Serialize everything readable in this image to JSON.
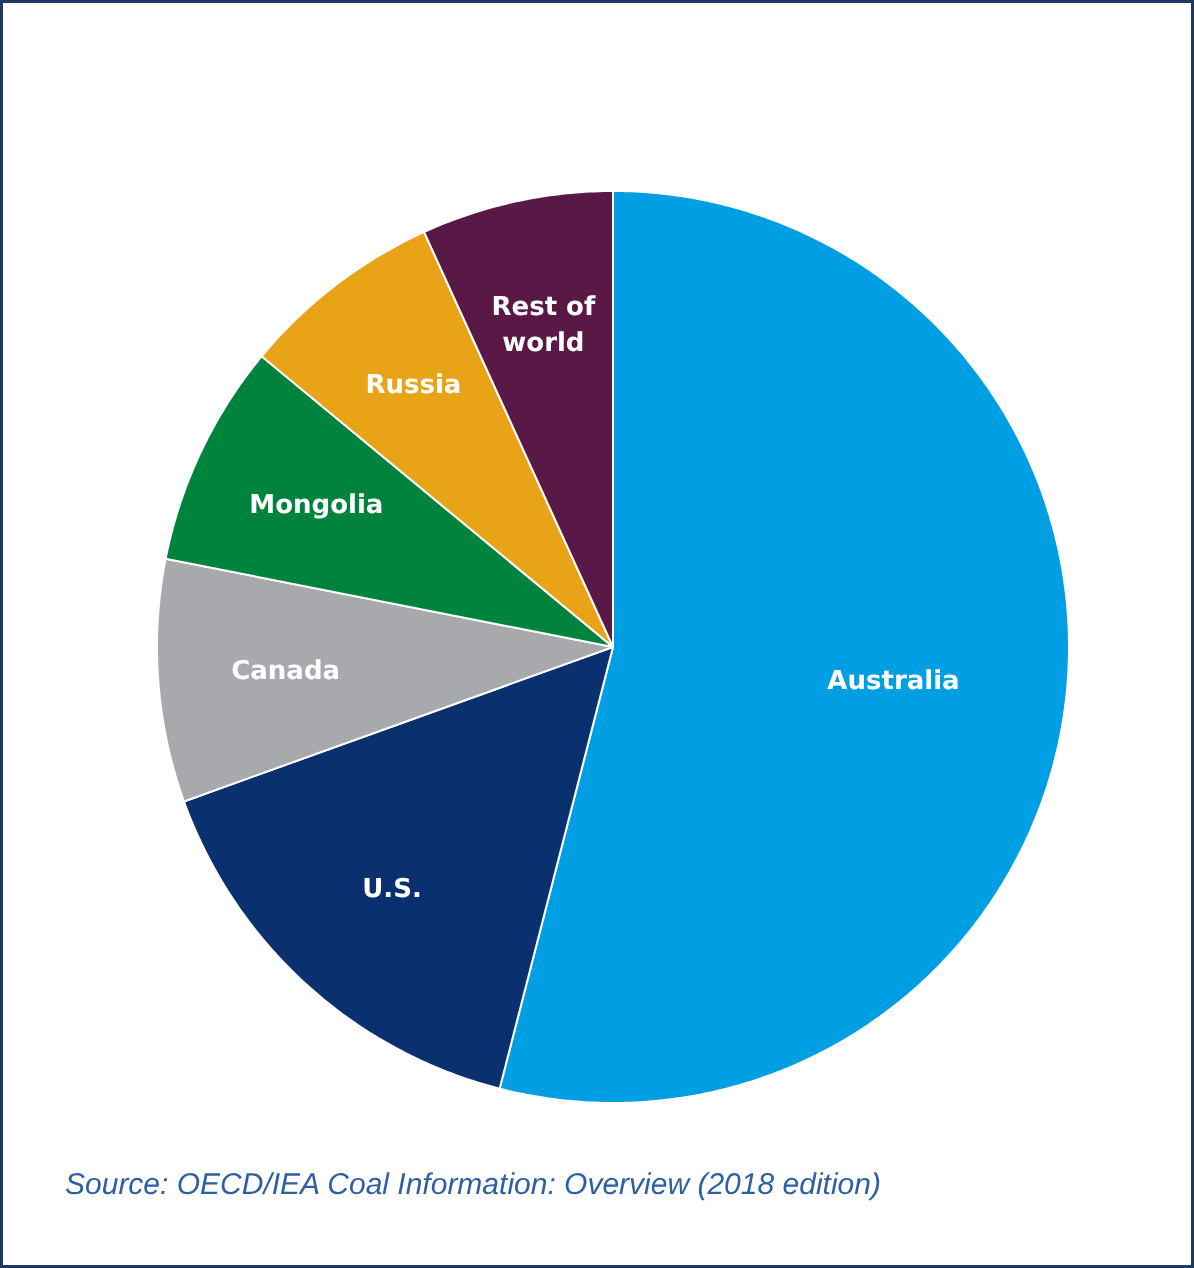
{
  "chart_data": {
    "type": "pie",
    "categories": [
      "Australia",
      "U.S.",
      "Canada",
      "Mongolia",
      "Russia",
      "Rest of\nworld"
    ],
    "values": [
      54,
      15.5,
      8.6,
      7.9,
      7.2,
      6.8
    ],
    "colors": [
      "#009fe3",
      "#0a3070",
      "#a7a9ac",
      "#00843d",
      "#e8a317",
      "#5a1846"
    ],
    "annotations": [
      "Source: OECD/IEA Coal Information: Overview (2018 edition)"
    ]
  }
}
